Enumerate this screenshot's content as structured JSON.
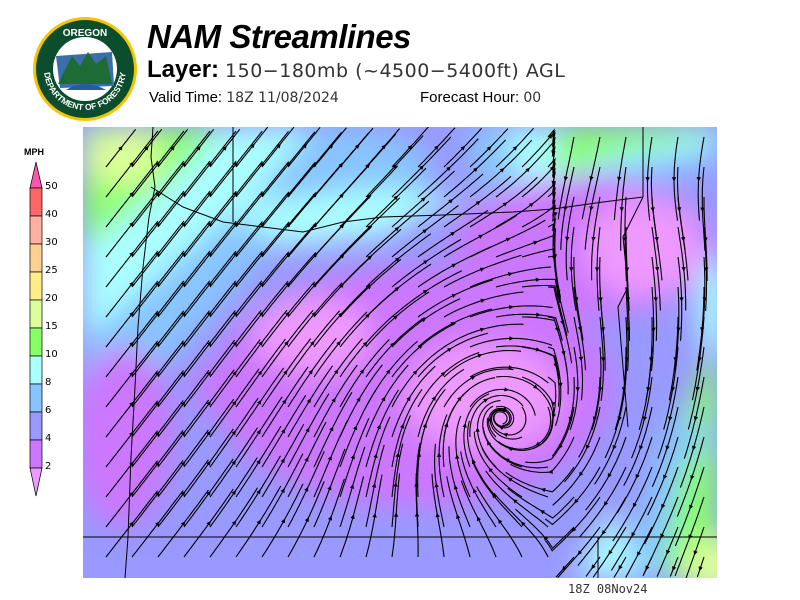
{
  "header": {
    "title": "NAM Streamlines",
    "layer_label": "Layer:",
    "layer_value": "150−180mb (~4500−5400ft) AGL",
    "valid_label": "Valid Time:",
    "valid_value": "18Z 11/08/2024",
    "forecast_label": "Forecast Hour:",
    "forecast_value": "00"
  },
  "logo": {
    "text_top": "OREGON",
    "text_bottom": "DEPARTMENT OF FORESTRY",
    "colors": {
      "ring": "#0b4d2c",
      "rim": "#f5c400"
    }
  },
  "legend": {
    "unit": "MPH",
    "top_arrow_color": "#ff55aa",
    "bottom_arrow_color": "#ee99ff",
    "bins": [
      {
        "label": "50",
        "color": "#ff6666"
      },
      {
        "label": "40",
        "color": "#ffb0a0"
      },
      {
        "label": "30",
        "color": "#ffd090"
      },
      {
        "label": "25",
        "color": "#ffee88"
      },
      {
        "label": "20",
        "color": "#ddff99"
      },
      {
        "label": "15",
        "color": "#88ff66"
      },
      {
        "label": "10",
        "color": "#aaffff"
      },
      {
        "label": "8",
        "color": "#88c4ff"
      },
      {
        "label": "6",
        "color": "#9999ff"
      },
      {
        "label": "4",
        "color": "#cc77ff"
      },
      {
        "label": "2",
        "color": ""
      }
    ]
  },
  "map": {
    "streamline_color": "#000000",
    "border_color": "#000000"
  },
  "footer": {
    "timestamp": "18Z 08Nov24"
  }
}
